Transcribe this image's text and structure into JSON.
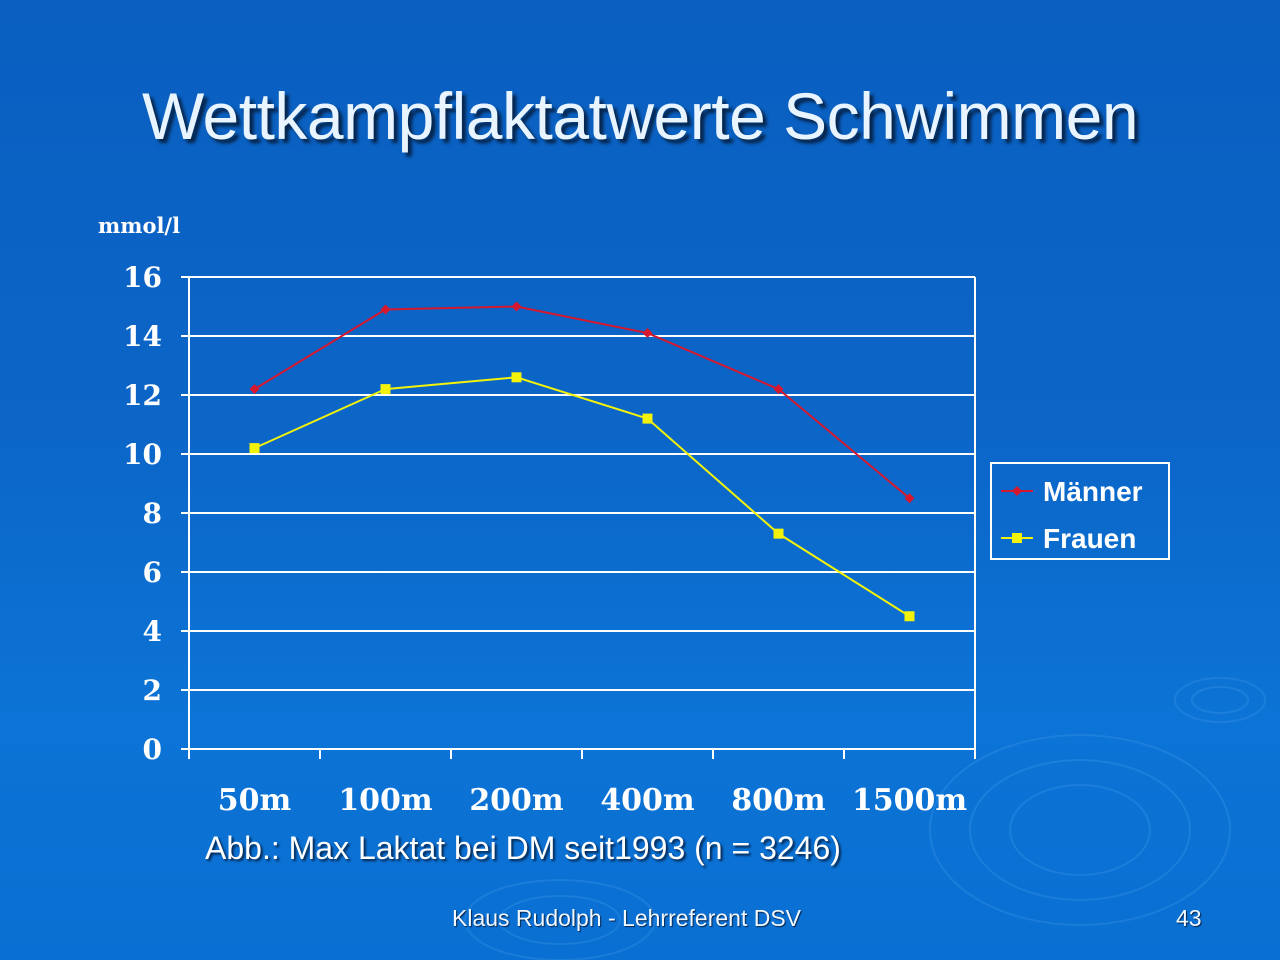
{
  "slide": {
    "title": "Wettkampflaktatwerte Schwimmen",
    "caption": "Abb.: Max Laktat bei DM seit1993 (n = 3246)",
    "footer": "Klaus Rudolph - Lehrreferent DSV",
    "page_number": "43"
  },
  "colors": {
    "background": "#0b66c8",
    "grid": "#ffffff",
    "maenner": "#d6182f",
    "frauen": "#f2f20a"
  },
  "chart_data": {
    "type": "line",
    "unit_label": "mmol/l",
    "categories": [
      "50m",
      "100m",
      "200m",
      "400m",
      "800m",
      "1500m"
    ],
    "series": [
      {
        "name": "Männer",
        "values": [
          12.2,
          14.9,
          15.0,
          14.1,
          12.2,
          8.5
        ],
        "color": "#d6182f",
        "marker": "diamond"
      },
      {
        "name": "Frauen",
        "values": [
          10.2,
          12.2,
          12.6,
          11.2,
          7.3,
          4.5
        ],
        "color": "#f2f20a",
        "marker": "square"
      }
    ],
    "ylim": [
      0,
      16
    ],
    "yticks": [
      0,
      2,
      4,
      6,
      8,
      10,
      12,
      14,
      16
    ],
    "grid": true,
    "legend_position": "right"
  }
}
